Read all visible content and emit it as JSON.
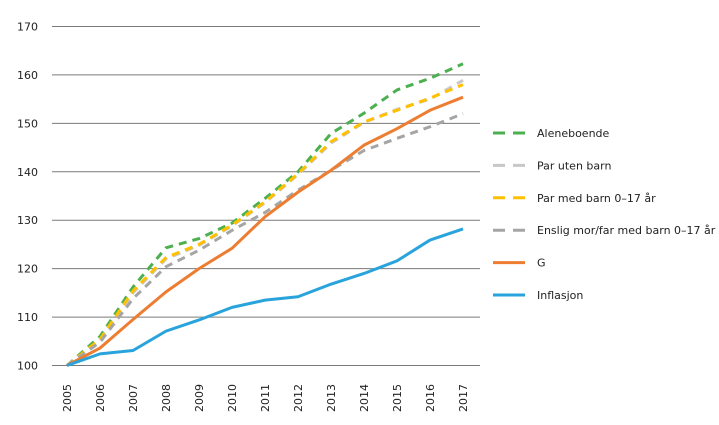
{
  "chart_data": {
    "type": "line",
    "title": "",
    "xlabel": "",
    "ylabel": "",
    "x": [
      "2005",
      "2006",
      "2007",
      "2008",
      "2009",
      "2010",
      "2011",
      "2012",
      "2013",
      "2014",
      "2015",
      "2016",
      "2017"
    ],
    "ylim": [
      100,
      170
    ],
    "yticks": [
      "100",
      "110",
      "120",
      "130",
      "140",
      "150",
      "160",
      "170"
    ],
    "grid": true,
    "legend_position": "right",
    "series": [
      {
        "name": "Aleneboende",
        "style": "dashed",
        "color": "#4CAF50",
        "values": [
          100,
          106.0,
          116.2,
          124.3,
          126.2,
          129.4,
          134.5,
          140.0,
          147.9,
          152.1,
          156.9,
          159.3,
          162.3
        ]
      },
      {
        "name": "Par uten barn",
        "style": "dashed",
        "color": "#C8C8C8",
        "values": [
          100,
          105.2,
          115.0,
          122.0,
          124.8,
          128.8,
          133.6,
          139.4,
          145.9,
          150.2,
          152.9,
          155.0,
          158.9
        ]
      },
      {
        "name": "Par med barn 0–17 år",
        "style": "dashed",
        "color": "#FFC000",
        "values": [
          100,
          105.4,
          115.4,
          122.3,
          125.0,
          129.0,
          133.8,
          139.6,
          146.2,
          150.3,
          152.7,
          155.2,
          158.0
        ]
      },
      {
        "name": "Enslig mor/far med barn 0–17 år",
        "style": "dashed",
        "color": "#A5A5A5",
        "values": [
          100,
          104.8,
          113.8,
          120.4,
          123.8,
          127.9,
          131.6,
          136.2,
          140.3,
          144.4,
          146.9,
          149.3,
          152.0
        ]
      },
      {
        "name": "G",
        "style": "solid",
        "color": "#ED7D31",
        "values": [
          100,
          103.6,
          109.5,
          115.2,
          120.0,
          124.2,
          130.7,
          135.8,
          140.3,
          145.5,
          148.9,
          152.7,
          155.4
        ]
      },
      {
        "name": "Inflasjon",
        "style": "solid",
        "color": "#29A3DB",
        "values": [
          100,
          102.4,
          103.1,
          107.1,
          109.4,
          112.0,
          113.5,
          114.2,
          116.8,
          119.0,
          121.6,
          125.9,
          128.2
        ]
      }
    ]
  }
}
